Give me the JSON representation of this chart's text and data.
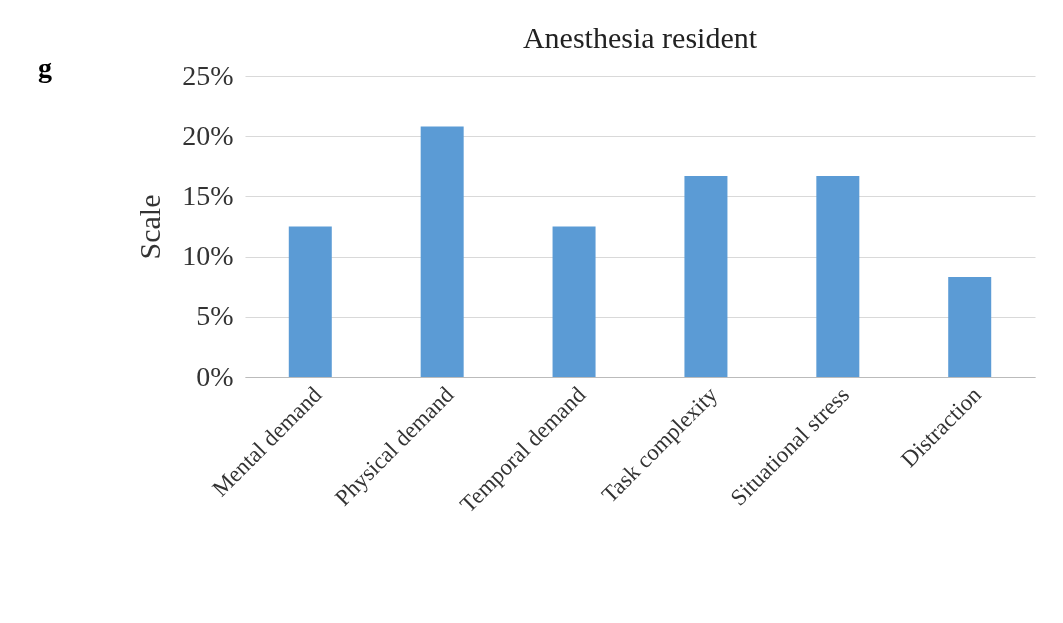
{
  "chart_data": {
    "type": "bar",
    "title": "Anesthesia resident",
    "ylabel": "Scale",
    "annotations": [
      "g"
    ],
    "categories": [
      "Mental demand",
      "Physical demand",
      "Temporal demand",
      "Task complexity",
      "Situational stress",
      "Distraction"
    ],
    "values": [
      12.5,
      20.8,
      12.5,
      16.7,
      16.7,
      8.3
    ],
    "color": "#5b9bd5",
    "ylim": [
      0,
      25
    ],
    "yticks": [
      {
        "value": 0,
        "label": "0%"
      },
      {
        "value": 5,
        "label": "5%"
      },
      {
        "value": 10,
        "label": "10%"
      },
      {
        "value": 15,
        "label": "15%"
      },
      {
        "value": 20,
        "label": "20%"
      },
      {
        "value": 25,
        "label": "25%"
      }
    ],
    "grid": "y"
  }
}
